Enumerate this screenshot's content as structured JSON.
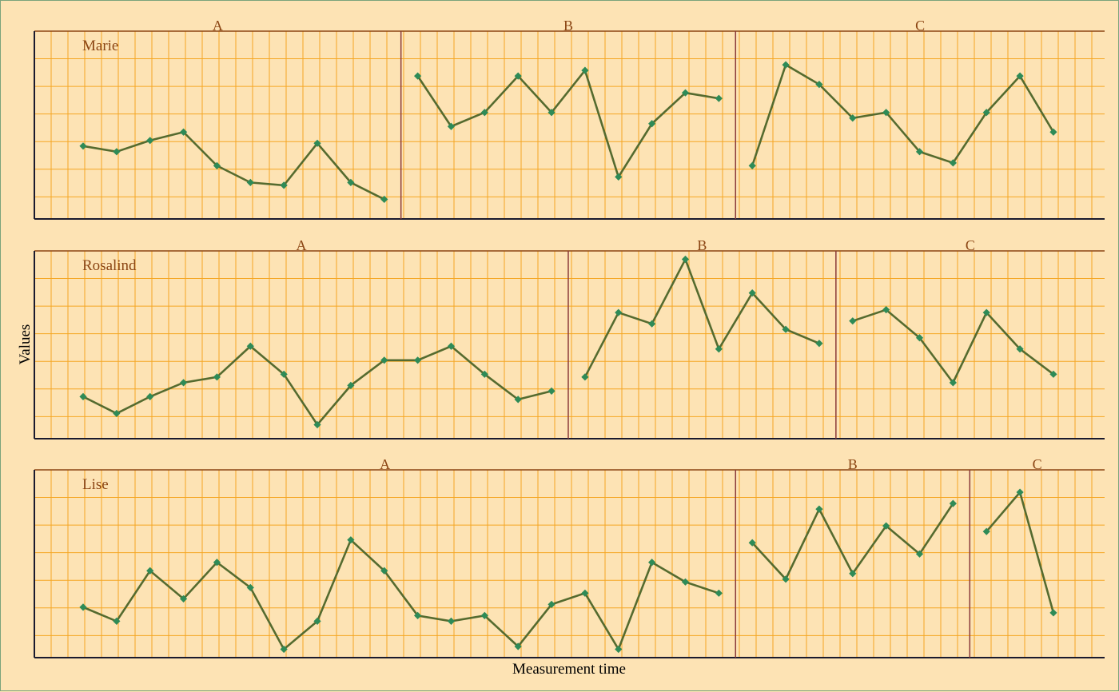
{
  "chart_data": {
    "type": "line",
    "xlabel": "Measurement time",
    "ylabel": "Values",
    "phase_labels": [
      "A",
      "B",
      "C"
    ],
    "grid": true,
    "colors": {
      "background": "#fde3b4",
      "grid": "#f5a623",
      "line": "#556b2f",
      "marker": "#2e8b57",
      "phase_divider": "#8b3a3a",
      "label_text": "#8b4513",
      "axis": "#1a1a2e"
    },
    "panels": [
      {
        "name": "Marie",
        "phases": [
          {
            "label": "A",
            "x": [
              1,
              2,
              3,
              4,
              5,
              6,
              7,
              8,
              9,
              10
            ],
            "values": [
              2.6,
              2.4,
              2.8,
              3.1,
              1.9,
              1.3,
              1.2,
              2.7,
              1.3,
              0.7
            ]
          },
          {
            "label": "B",
            "x": [
              11,
              12,
              13,
              14,
              15,
              16,
              17,
              18,
              19,
              20
            ],
            "values": [
              5.1,
              3.3,
              3.8,
              5.1,
              3.8,
              5.3,
              1.5,
              3.4,
              4.5,
              4.3
            ]
          },
          {
            "label": "C",
            "x": [
              21,
              22,
              23,
              24,
              25,
              26,
              27,
              28,
              29,
              30
            ],
            "values": [
              1.9,
              5.5,
              4.8,
              3.6,
              3.8,
              2.4,
              2.0,
              3.8,
              5.1,
              3.1
            ]
          }
        ]
      },
      {
        "name": "Rosalind",
        "phases": [
          {
            "label": "A",
            "x": [
              1,
              2,
              3,
              4,
              5,
              6,
              7,
              8,
              9,
              10,
              11,
              12,
              13,
              14,
              15
            ],
            "values": [
              1.5,
              0.9,
              1.5,
              2.0,
              2.2,
              3.3,
              2.3,
              0.5,
              1.9,
              2.8,
              2.8,
              3.3,
              2.3,
              1.4,
              1.7
            ]
          },
          {
            "label": "B",
            "x": [
              16,
              17,
              18,
              19,
              20,
              21,
              22,
              23
            ],
            "values": [
              2.2,
              4.5,
              4.1,
              6.4,
              3.2,
              5.2,
              3.9,
              3.4
            ]
          },
          {
            "label": "C",
            "x": [
              24,
              25,
              26,
              27,
              28,
              29,
              30
            ],
            "values": [
              4.2,
              4.6,
              3.6,
              2.0,
              4.5,
              3.2,
              2.3
            ]
          }
        ]
      },
      {
        "name": "Lise",
        "phases": [
          {
            "label": "A",
            "x": [
              1,
              2,
              3,
              4,
              5,
              6,
              7,
              8,
              9,
              10,
              11,
              12,
              13,
              14,
              15,
              16,
              17,
              18,
              19,
              20
            ],
            "values": [
              1.8,
              1.3,
              3.1,
              2.1,
              3.4,
              2.5,
              0.3,
              1.3,
              4.2,
              3.1,
              1.5,
              1.3,
              1.5,
              0.4,
              1.9,
              2.3,
              0.3,
              3.4,
              2.7,
              2.3
            ]
          },
          {
            "label": "B",
            "x": [
              21,
              22,
              23,
              24,
              25,
              26,
              27
            ],
            "values": [
              4.1,
              2.8,
              5.3,
              3.0,
              4.7,
              3.7,
              5.5
            ]
          },
          {
            "label": "C",
            "x": [
              28,
              29,
              30
            ],
            "values": [
              4.5,
              5.9,
              1.6
            ]
          }
        ]
      }
    ]
  }
}
